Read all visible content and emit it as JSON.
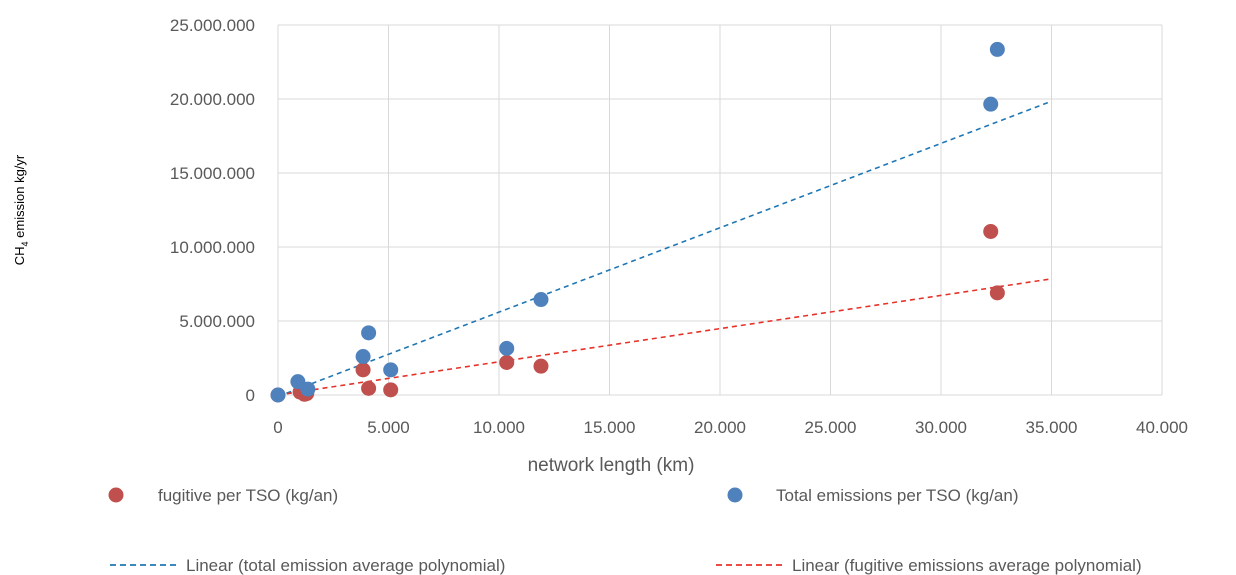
{
  "chart_data": {
    "type": "scatter",
    "title": "",
    "xlabel": "network length (km)",
    "ylabel_main": "CH",
    "ylabel_sub": "4",
    "ylabel_rest": " emission kg/yr",
    "xlim": [
      0,
      40000
    ],
    "ylim": [
      0,
      25000000
    ],
    "x_ticks": [
      0,
      5000,
      10000,
      15000,
      20000,
      25000,
      30000,
      35000,
      40000
    ],
    "x_tick_labels": [
      "0",
      "5.000",
      "10.000",
      "15.000",
      "20.000",
      "25.000",
      "30.000",
      "35.000",
      "40.000"
    ],
    "y_ticks": [
      0,
      5000000,
      10000000,
      15000000,
      20000000,
      25000000
    ],
    "y_tick_labels": [
      "0",
      "5.000.000",
      "10.000.000",
      "15.000.000",
      "20.000.000",
      "25.000.000"
    ],
    "grid": true,
    "legend_position": "bottom",
    "series": [
      {
        "name": "fugitive per TSO (kg/an)",
        "color": "#c0504d",
        "points": [
          {
            "x": 0,
            "y": 0
          },
          {
            "x": 1000,
            "y": 200000
          },
          {
            "x": 1200,
            "y": 50000
          },
          {
            "x": 1300,
            "y": 100000
          },
          {
            "x": 3850,
            "y": 1700000
          },
          {
            "x": 4100,
            "y": 450000
          },
          {
            "x": 5100,
            "y": 350000
          },
          {
            "x": 10350,
            "y": 2200000
          },
          {
            "x": 11900,
            "y": 1950000
          },
          {
            "x": 32250,
            "y": 11050000
          },
          {
            "x": 32550,
            "y": 6900000
          }
        ]
      },
      {
        "name": "Total emissions per TSO (kg/an)",
        "color": "#4f81bd",
        "points": [
          {
            "x": 0,
            "y": 0
          },
          {
            "x": 900,
            "y": 900000
          },
          {
            "x": 1350,
            "y": 400000
          },
          {
            "x": 3850,
            "y": 2600000
          },
          {
            "x": 4100,
            "y": 4200000
          },
          {
            "x": 5100,
            "y": 1700000
          },
          {
            "x": 10350,
            "y": 3150000
          },
          {
            "x": 11900,
            "y": 6450000
          },
          {
            "x": 32250,
            "y": 19650000
          },
          {
            "x": 32550,
            "y": 23350000
          }
        ]
      }
    ],
    "trendlines": [
      {
        "name": "Linear (total emission average polynomial)",
        "color": "#1f77b4",
        "x": [
          0,
          35000
        ],
        "y": [
          -100000,
          19850000
        ]
      },
      {
        "name": "Linear (fugitive emissions average polynomial)",
        "color": "#e6332a",
        "x": [
          0,
          35000
        ],
        "y": [
          0,
          7850000
        ]
      }
    ]
  }
}
